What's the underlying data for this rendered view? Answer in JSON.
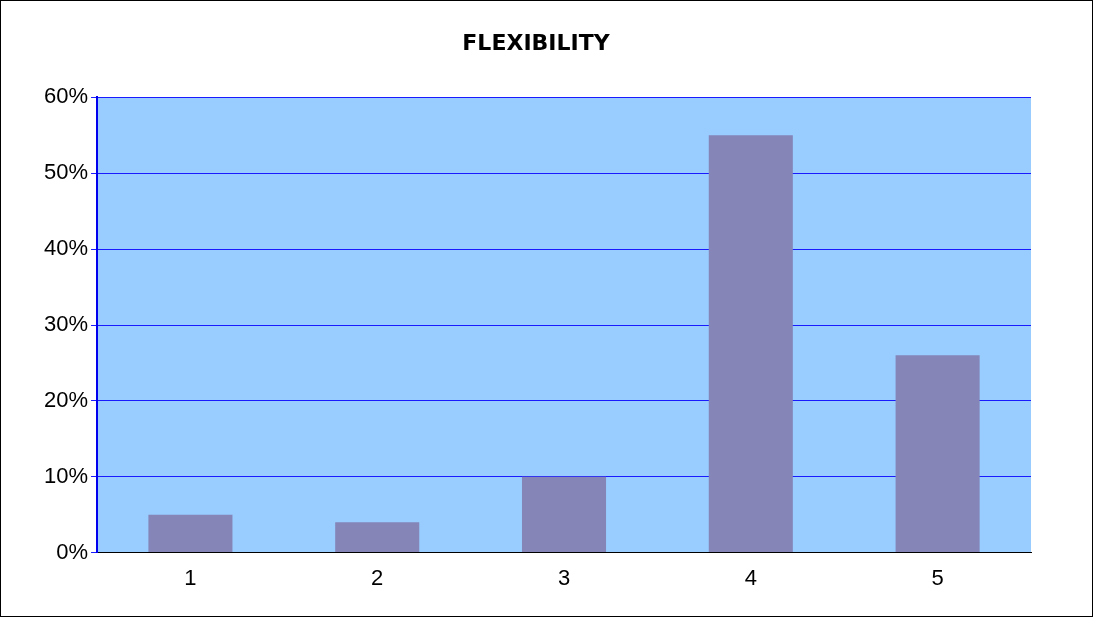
{
  "chart_data": {
    "type": "bar",
    "title": "FLEXIBILITY",
    "categories": [
      "1",
      "2",
      "3",
      "4",
      "5"
    ],
    "values": [
      5,
      4,
      10,
      55,
      26
    ],
    "color": "#8585b8",
    "ylim": [
      0,
      60
    ],
    "yticks": [
      {
        "value": 0,
        "label": "0%"
      },
      {
        "value": 10,
        "label": "10%"
      },
      {
        "value": 20,
        "label": "20%"
      },
      {
        "value": 30,
        "label": "30%"
      },
      {
        "value": 40,
        "label": "40%"
      },
      {
        "value": 50,
        "label": "50%"
      },
      {
        "value": 60,
        "label": "60%"
      }
    ],
    "grid": "y",
    "legend": false
  }
}
